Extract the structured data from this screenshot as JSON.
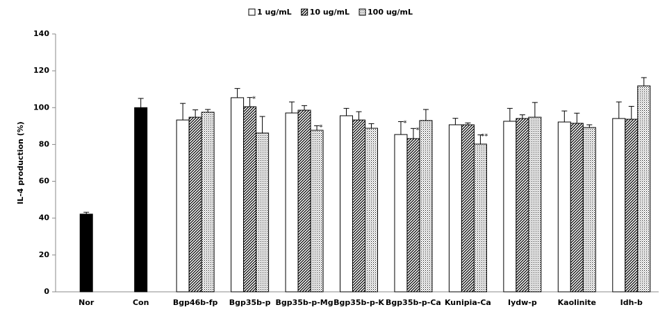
{
  "chart_data": {
    "type": "bar",
    "y_label": "IL-4 production (%)",
    "categories": [
      "Nor",
      "Con",
      "Bgp46b-fp",
      "Bgp35b-p",
      "Bgp35b-p-Mg",
      "Bgp35b-p-K",
      "Bgp35b-p-Ca",
      "Kunipia-Ca",
      "Iydw-p",
      "Kaolinite",
      "Idh-b"
    ],
    "series": [
      {
        "color": "#000000",
        "values": [
          42.2,
          100,
          null,
          null,
          null,
          null,
          null,
          null,
          null,
          null,
          null
        ],
        "errors": [
          1,
          5,
          null,
          null,
          null,
          null,
          null,
          null,
          null,
          null,
          null
        ]
      },
      {
        "name": "1 ug/mL",
        "color": "#ffffff",
        "pattern": "none",
        "values": [
          null,
          null,
          93.3,
          105.4,
          97.1,
          95.6,
          85.4,
          90.7,
          92.6,
          92.2,
          94.1
        ],
        "errors": [
          null,
          null,
          9,
          5,
          6,
          4,
          7,
          3.5,
          7,
          6,
          9
        ],
        "marks": [
          null,
          null,
          null,
          null,
          null,
          null,
          "*",
          null,
          null,
          null,
          null
        ]
      },
      {
        "name": "10 ug/mL",
        "color": "#ffffff",
        "pattern": "diagonal",
        "values": [
          null,
          null,
          94.8,
          100.5,
          98.6,
          93.3,
          83.2,
          90.7,
          94.1,
          91.5,
          93.7
        ],
        "errors": [
          null,
          null,
          4,
          5,
          2.5,
          4.5,
          5.5,
          1,
          2,
          5.5,
          7
        ],
        "marks": [
          null,
          null,
          null,
          "*",
          null,
          null,
          "*",
          null,
          null,
          null,
          null
        ]
      },
      {
        "name": "100 ug/mL",
        "color": "#ffffff",
        "pattern": "cross",
        "values": [
          null,
          null,
          97.5,
          86.2,
          87.7,
          88.8,
          93,
          80.2,
          94.8,
          89.2,
          111.8
        ],
        "errors": [
          null,
          null,
          1.5,
          9,
          2.5,
          2.5,
          6,
          5,
          8,
          1.5,
          4.5
        ],
        "marks": [
          null,
          null,
          null,
          null,
          "*",
          null,
          null,
          "**",
          null,
          null,
          null
        ]
      }
    ],
    "ylim": [
      0,
      140
    ],
    "yticks": [
      0,
      20,
      40,
      60,
      80,
      100,
      120,
      140
    ],
    "grid": false
  }
}
